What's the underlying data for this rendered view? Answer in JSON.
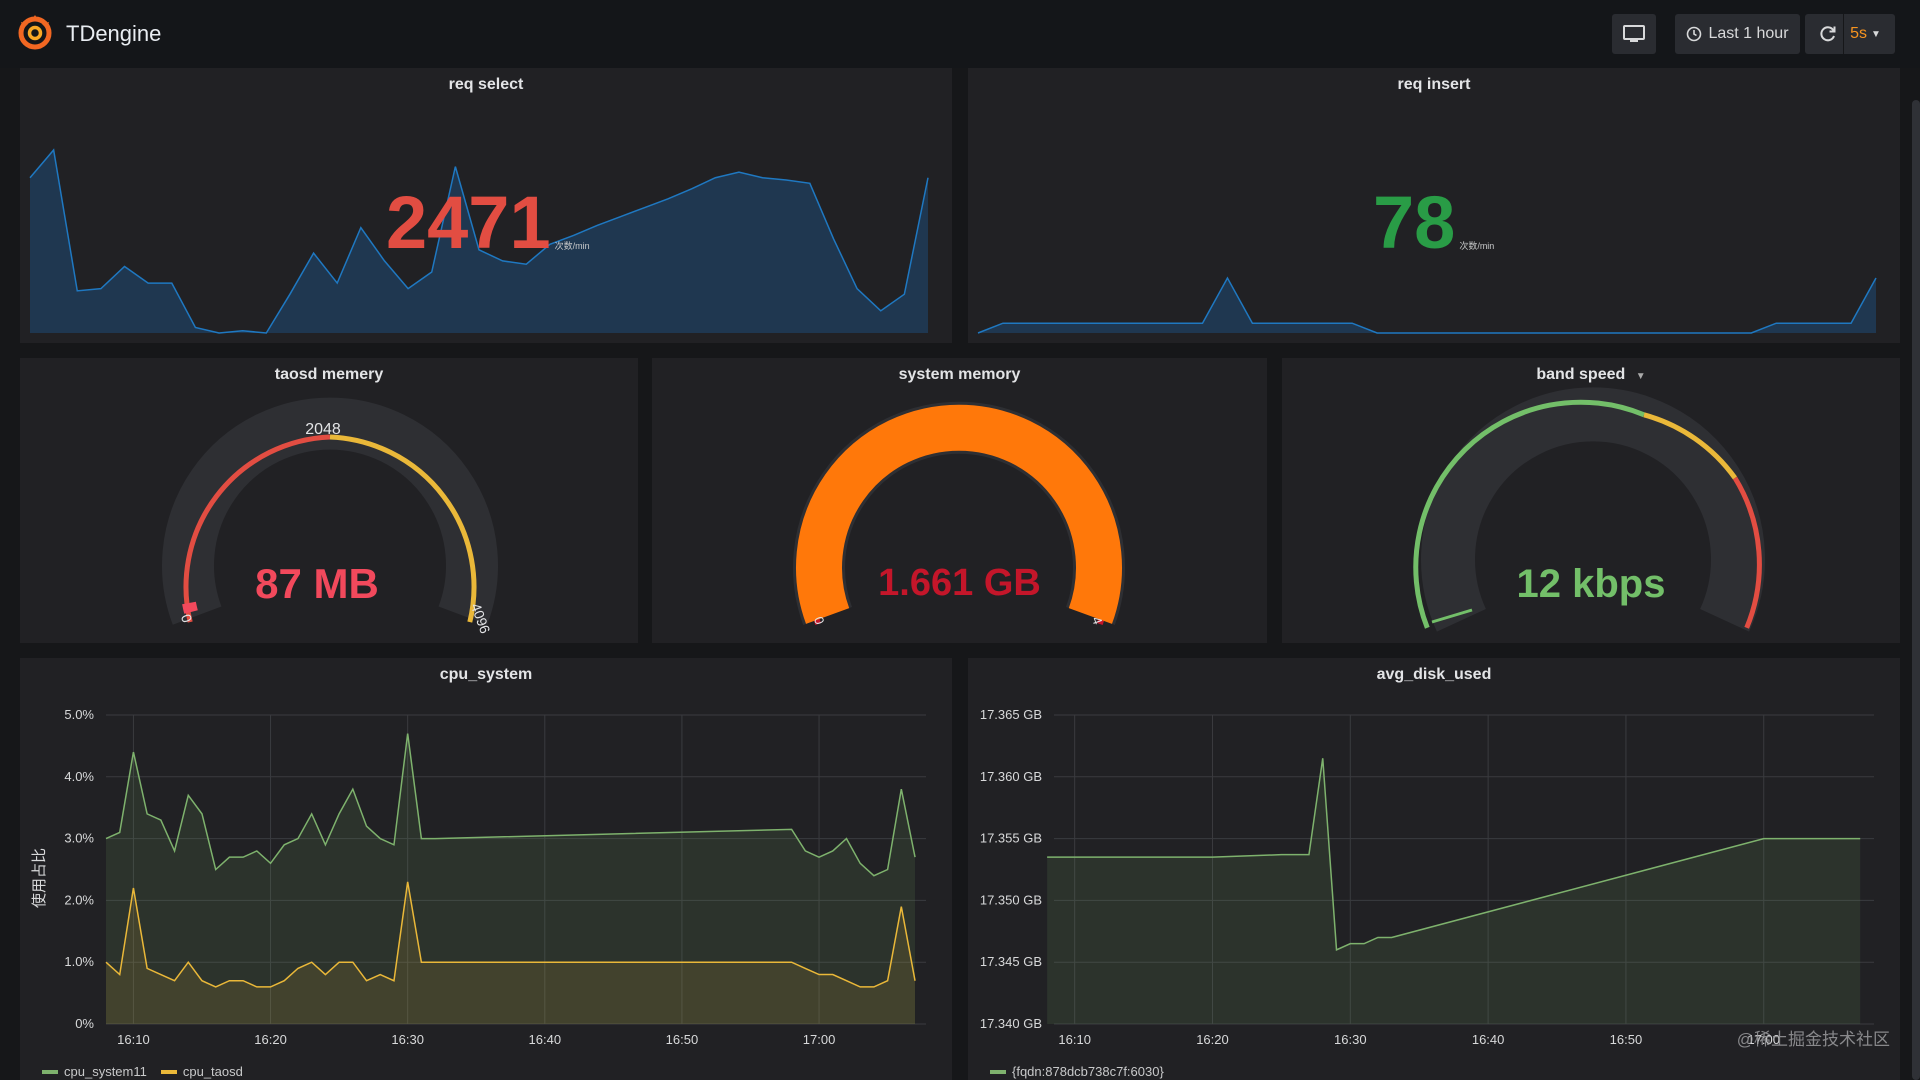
{
  "app": {
    "title": "TDengine"
  },
  "toolbar": {
    "time_range": "Last 1 hour",
    "refresh_interval": "5s",
    "icons": [
      "tv-monitor-icon",
      "clock-icon",
      "refresh-icon",
      "chevron-down-icon"
    ]
  },
  "colors": {
    "red": "#e24d42",
    "green": "#299c46",
    "light_green": "#73bf69",
    "orange": "#ff780a",
    "yellow": "#eab839",
    "blue_line": "#1f78c1"
  },
  "panels": {
    "req_select": {
      "title": "req select",
      "value": "2471",
      "unit": "次数/min",
      "color": "#e24d42",
      "sparkline": [
        140,
        165,
        38,
        40,
        60,
        45,
        45,
        5,
        0,
        2,
        0,
        35,
        72,
        45,
        95,
        65,
        40,
        55,
        150,
        75,
        65,
        62,
        80,
        88,
        97,
        105,
        113,
        121,
        130,
        140,
        145,
        140,
        138,
        135,
        85,
        40,
        20,
        35,
        140
      ]
    },
    "req_insert": {
      "title": "req insert",
      "value": "78",
      "unit": "次数/min",
      "color": "#299c46",
      "sparkline": [
        0,
        8,
        8,
        8,
        8,
        8,
        8,
        8,
        8,
        8,
        45,
        8,
        8,
        8,
        8,
        8,
        0,
        0,
        0,
        0,
        0,
        0,
        0,
        0,
        0,
        0,
        0,
        0,
        0,
        0,
        0,
        0,
        8,
        8,
        8,
        8,
        45
      ]
    },
    "taosd_memory": {
      "title": "taosd memery",
      "value": "87 MB",
      "min_label": "0",
      "mid_label": "2048",
      "max_label": "4096",
      "fraction": 0.02,
      "value_color": "#f2495c"
    },
    "system_memory": {
      "title": "system memory",
      "value": "1.661 GB",
      "min_label": "0",
      "max_label": "4",
      "fraction": 0.415,
      "value_color": "#c4162a"
    },
    "band_speed": {
      "title": "band speed",
      "value": "12 kbps",
      "fraction": 0.05,
      "value_color": "#73bf69"
    },
    "cpu_system": {
      "title": "cpu_system",
      "ylabel": "使用占比",
      "y_ticks": [
        "5.0%",
        "4.0%",
        "3.0%",
        "2.0%",
        "1.0%",
        "0%"
      ],
      "x_ticks": [
        "16:10",
        "16:20",
        "16:30",
        "16:40",
        "16:50",
        "17:00"
      ],
      "legend": [
        {
          "name": "cpu_system11",
          "color": "#7eb26d"
        },
        {
          "name": "cpu_taosd",
          "color": "#eab839"
        }
      ]
    },
    "avg_disk_used": {
      "title": "avg_disk_used",
      "y_ticks": [
        "17.365 GB",
        "17.360 GB",
        "17.355 GB",
        "17.350 GB",
        "17.345 GB",
        "17.340 GB"
      ],
      "x_ticks": [
        "16:10",
        "16:20",
        "16:30",
        "16:40",
        "16:50",
        "17:00"
      ],
      "legend": [
        {
          "name": "{fqdn:878dcb738c7f:6030}",
          "color": "#7eb26d"
        }
      ]
    }
  },
  "chart_data": [
    {
      "type": "line",
      "title": "cpu_system",
      "ylabel": "使用占比",
      "ylim": [
        0,
        5.0
      ],
      "x": [
        "16:08",
        "16:09",
        "16:10",
        "16:11",
        "16:12",
        "16:13",
        "16:14",
        "16:15",
        "16:16",
        "16:17",
        "16:18",
        "16:19",
        "16:20",
        "16:21",
        "16:22",
        "16:23",
        "16:24",
        "16:25",
        "16:26",
        "16:27",
        "16:28",
        "16:29",
        "16:30",
        "16:31",
        "16:32",
        "16:58",
        "16:59",
        "17:00",
        "17:01",
        "17:02",
        "17:03",
        "17:04",
        "17:05",
        "17:06",
        "17:07"
      ],
      "series": [
        {
          "name": "cpu_system11",
          "values": [
            3.0,
            3.1,
            4.4,
            3.4,
            3.3,
            2.8,
            3.7,
            3.4,
            2.5,
            2.7,
            2.7,
            2.8,
            2.6,
            2.9,
            3.0,
            3.4,
            2.9,
            3.4,
            3.8,
            3.2,
            3.0,
            2.9,
            4.7,
            3.0,
            3.0,
            3.15,
            2.8,
            2.7,
            2.8,
            3.0,
            2.6,
            2.4,
            2.5,
            3.8,
            2.7
          ]
        },
        {
          "name": "cpu_taosd",
          "values": [
            1.0,
            0.8,
            2.2,
            0.9,
            0.8,
            0.7,
            1.0,
            0.7,
            0.6,
            0.7,
            0.7,
            0.6,
            0.6,
            0.7,
            0.9,
            1.0,
            0.8,
            1.0,
            1.0,
            0.7,
            0.8,
            0.7,
            2.3,
            1.0,
            1.0,
            1.0,
            0.9,
            0.8,
            0.8,
            0.7,
            0.6,
            0.6,
            0.7,
            1.9,
            0.7
          ]
        }
      ]
    },
    {
      "type": "line",
      "title": "avg_disk_used",
      "ylim": [
        17.34,
        17.365
      ],
      "x": [
        "16:08",
        "16:10",
        "16:20",
        "16:25",
        "16:27",
        "16:28",
        "16:29",
        "16:30",
        "16:31",
        "16:32",
        "16:33",
        "17:00",
        "17:07"
      ],
      "series": [
        {
          "name": "{fqdn:878dcb738c7f:6030}",
          "values": [
            17.3535,
            17.3535,
            17.3535,
            17.3537,
            17.3537,
            17.3615,
            17.346,
            17.3465,
            17.3465,
            17.347,
            17.347,
            17.355,
            17.355
          ]
        }
      ]
    }
  ],
  "watermark": "@稀土掘金技术社区"
}
